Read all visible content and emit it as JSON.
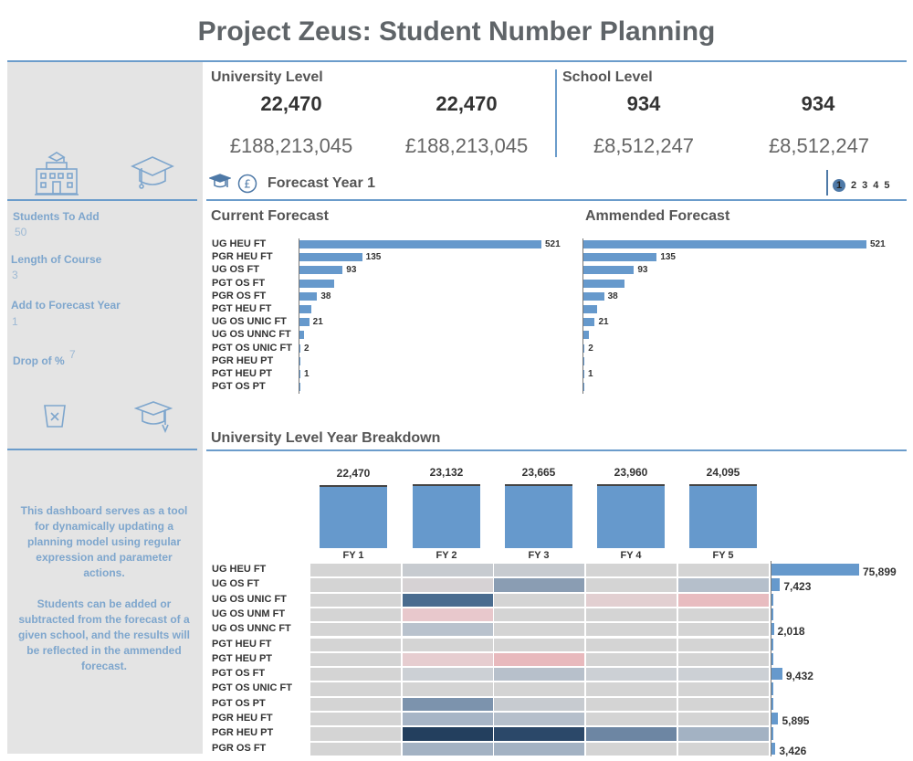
{
  "title": "Project Zeus: Student Number Planning",
  "sidebar": {
    "students_to_add_label": "Students To Add",
    "students_to_add_value": "50",
    "length_label": "Length of Course",
    "length_value": "3",
    "forecast_year_label": "Add to Forecast Year",
    "forecast_year_value": "1",
    "drop_label": "Drop of %",
    "drop_value": "7",
    "desc1": "This dashboard serves as a tool for dynamically updating a planning model using regular expression and parameter actions.",
    "desc2": "Students can be added or subtracted from the forecast of a given school, and the results will be reflected in the ammended forecast."
  },
  "university": {
    "title": "University Level",
    "current_students": "22,470",
    "amended_students": "22,470",
    "current_money": "£188,213,045",
    "amended_money": "£188,213,045"
  },
  "school": {
    "title": "School Level",
    "current_students": "934",
    "amended_students": "934",
    "current_money": "£8,512,247",
    "amended_money": "£8,512,247"
  },
  "forecast_year_title": "Forecast Year 1",
  "pager": {
    "pages": [
      "1",
      "2",
      "3",
      "4",
      "5"
    ],
    "current": "1"
  },
  "current_forecast_title": "Current Forecast",
  "amended_forecast_title": "Ammended Forecast",
  "forecast_categories": [
    "UG HEU FT",
    "PGR HEU FT",
    "UG OS FT",
    "PGT OS FT",
    "PGR OS FT",
    "PGT HEU FT",
    "UG OS UNIC FT",
    "UG OS UNNC FT",
    "PGT OS UNIC FT",
    "PGR HEU PT",
    "PGT HEU PT",
    "PGT OS PT"
  ],
  "forecast_values": [
    521,
    135,
    93,
    75,
    38,
    25,
    21,
    10,
    2,
    1,
    1,
    1
  ],
  "forecast_labels": [
    "521",
    "135",
    "93",
    "",
    "38",
    "",
    "21",
    "",
    "2",
    "",
    "1",
    ""
  ],
  "breakdown_title": "University Level Year Breakdown",
  "chart_data": [
    {
      "type": "bar",
      "title": "Current Forecast",
      "categories": [
        "UG HEU FT",
        "PGR HEU FT",
        "UG OS FT",
        "PGT OS FT",
        "PGR OS FT",
        "PGT HEU FT",
        "UG OS UNIC FT",
        "UG OS UNNC FT",
        "PGT OS UNIC FT",
        "PGR HEU PT",
        "PGT HEU PT",
        "PGT OS PT"
      ],
      "values": [
        521,
        135,
        93,
        75,
        38,
        25,
        21,
        10,
        2,
        1,
        1,
        1
      ]
    },
    {
      "type": "bar",
      "title": "Ammended Forecast",
      "categories": [
        "UG HEU FT",
        "PGR HEU FT",
        "UG OS FT",
        "PGT OS FT",
        "PGR OS FT",
        "PGT HEU FT",
        "UG OS UNIC FT",
        "UG OS UNNC FT",
        "PGT OS UNIC FT",
        "PGR HEU PT",
        "PGT HEU PT",
        "PGT OS PT"
      ],
      "values": [
        521,
        135,
        93,
        75,
        38,
        25,
        21,
        10,
        2,
        1,
        1,
        1
      ]
    },
    {
      "type": "bar",
      "title": "University Level Year Breakdown",
      "categories": [
        "FY 1",
        "FY 2",
        "FY 3",
        "FY 4",
        "FY 5"
      ],
      "values": [
        22470,
        23132,
        23665,
        23960,
        24095
      ],
      "labels": [
        "22,470",
        "23,132",
        "23,665",
        "23,960",
        "24,095"
      ]
    },
    {
      "type": "heatmap",
      "x": [
        "FY 1",
        "FY 2",
        "FY 3",
        "FY 4",
        "FY 5"
      ],
      "y": [
        "UG HEU FT",
        "UG OS FT",
        "UG OS UNIC FT",
        "UG OS UNM FT",
        "UG OS UNNC FT",
        "PGT HEU FT",
        "PGT HEU PT",
        "PGT OS FT",
        "PGT OS UNIC FT",
        "PGT OS PT",
        "PGR HEU FT",
        "PGR HEU PT",
        "PGR OS FT"
      ],
      "colors": [
        [
          "#d4d4d4",
          "#c7cbd0",
          "#c7cbd0",
          "#d4d4d4",
          "#d4d4d4"
        ],
        [
          "#d4d4d4",
          "#d6d2d4",
          "#8a9db3",
          "#d4d4d4",
          "#b5bfcb"
        ],
        [
          "#d4d4d4",
          "#4a6c8f",
          "#d4d4d4",
          "#e2cfd1",
          "#e8bcc0"
        ],
        [
          "#d4d4d4",
          "#e8c8cc",
          "#d4d4d4",
          "#d4d4d4",
          "#d4d4d4"
        ],
        [
          "#d4d4d4",
          "#b9c2cd",
          "#d4d4d4",
          "#d4d4d4",
          "#d4d4d4"
        ],
        [
          "#d4d4d4",
          "#d4d4d4",
          "#d4d4d4",
          "#d4d4d4",
          "#d4d4d4"
        ],
        [
          "#d4d4d4",
          "#e6cdd0",
          "#e8b9bd",
          "#d4d4d4",
          "#d4d4d4"
        ],
        [
          "#d4d4d4",
          "#ccd0d5",
          "#b7c0cb",
          "#ccd0d5",
          "#ccd0d5"
        ],
        [
          "#d4d4d4",
          "#d4d4d4",
          "#d4d4d4",
          "#d4d4d4",
          "#d4d4d4"
        ],
        [
          "#d4d4d4",
          "#7c93ad",
          "#c7cbd0",
          "#d4d4d4",
          "#d4d4d4"
        ],
        [
          "#d4d4d4",
          "#a7b5c6",
          "#b5bfcb",
          "#d4d4d4",
          "#d4d4d4"
        ],
        [
          "#d4d4d4",
          "#233f5e",
          "#2b4869",
          "#6d86a3",
          "#a3b2c3"
        ],
        [
          "#d4d4d4",
          "#a3b2c3",
          "#a3b2c3",
          "#d4d4d4",
          "#d4d4d4"
        ]
      ]
    },
    {
      "type": "bar",
      "title": "Row totals",
      "categories": [
        "UG HEU FT",
        "UG OS FT",
        "UG OS UNIC FT",
        "UG OS UNM FT",
        "UG OS UNNC FT",
        "PGT HEU FT",
        "PGT HEU PT",
        "PGT OS FT",
        "PGT OS UNIC FT",
        "PGT OS PT",
        "PGR HEU FT",
        "PGR HEU PT",
        "PGR OS FT"
      ],
      "values": [
        75899,
        7423,
        800,
        200,
        2018,
        1500,
        700,
        9432,
        100,
        700,
        5895,
        800,
        3426
      ],
      "labels": [
        "75,899",
        "7,423",
        "",
        "",
        "2,018",
        "",
        "",
        "9,432",
        "",
        "",
        "5,895",
        "",
        "3,426"
      ]
    }
  ],
  "colors": {
    "accent": "#6b9ccb",
    "bar": "#6699cc",
    "sidebar_bg": "#e4e4e4",
    "sidebar_text": "#7ea6cd"
  },
  "icons": [
    "university-building-icon",
    "graduation-cap-icon",
    "pound-coin-icon",
    "bin-icon",
    "graduate-icon"
  ]
}
